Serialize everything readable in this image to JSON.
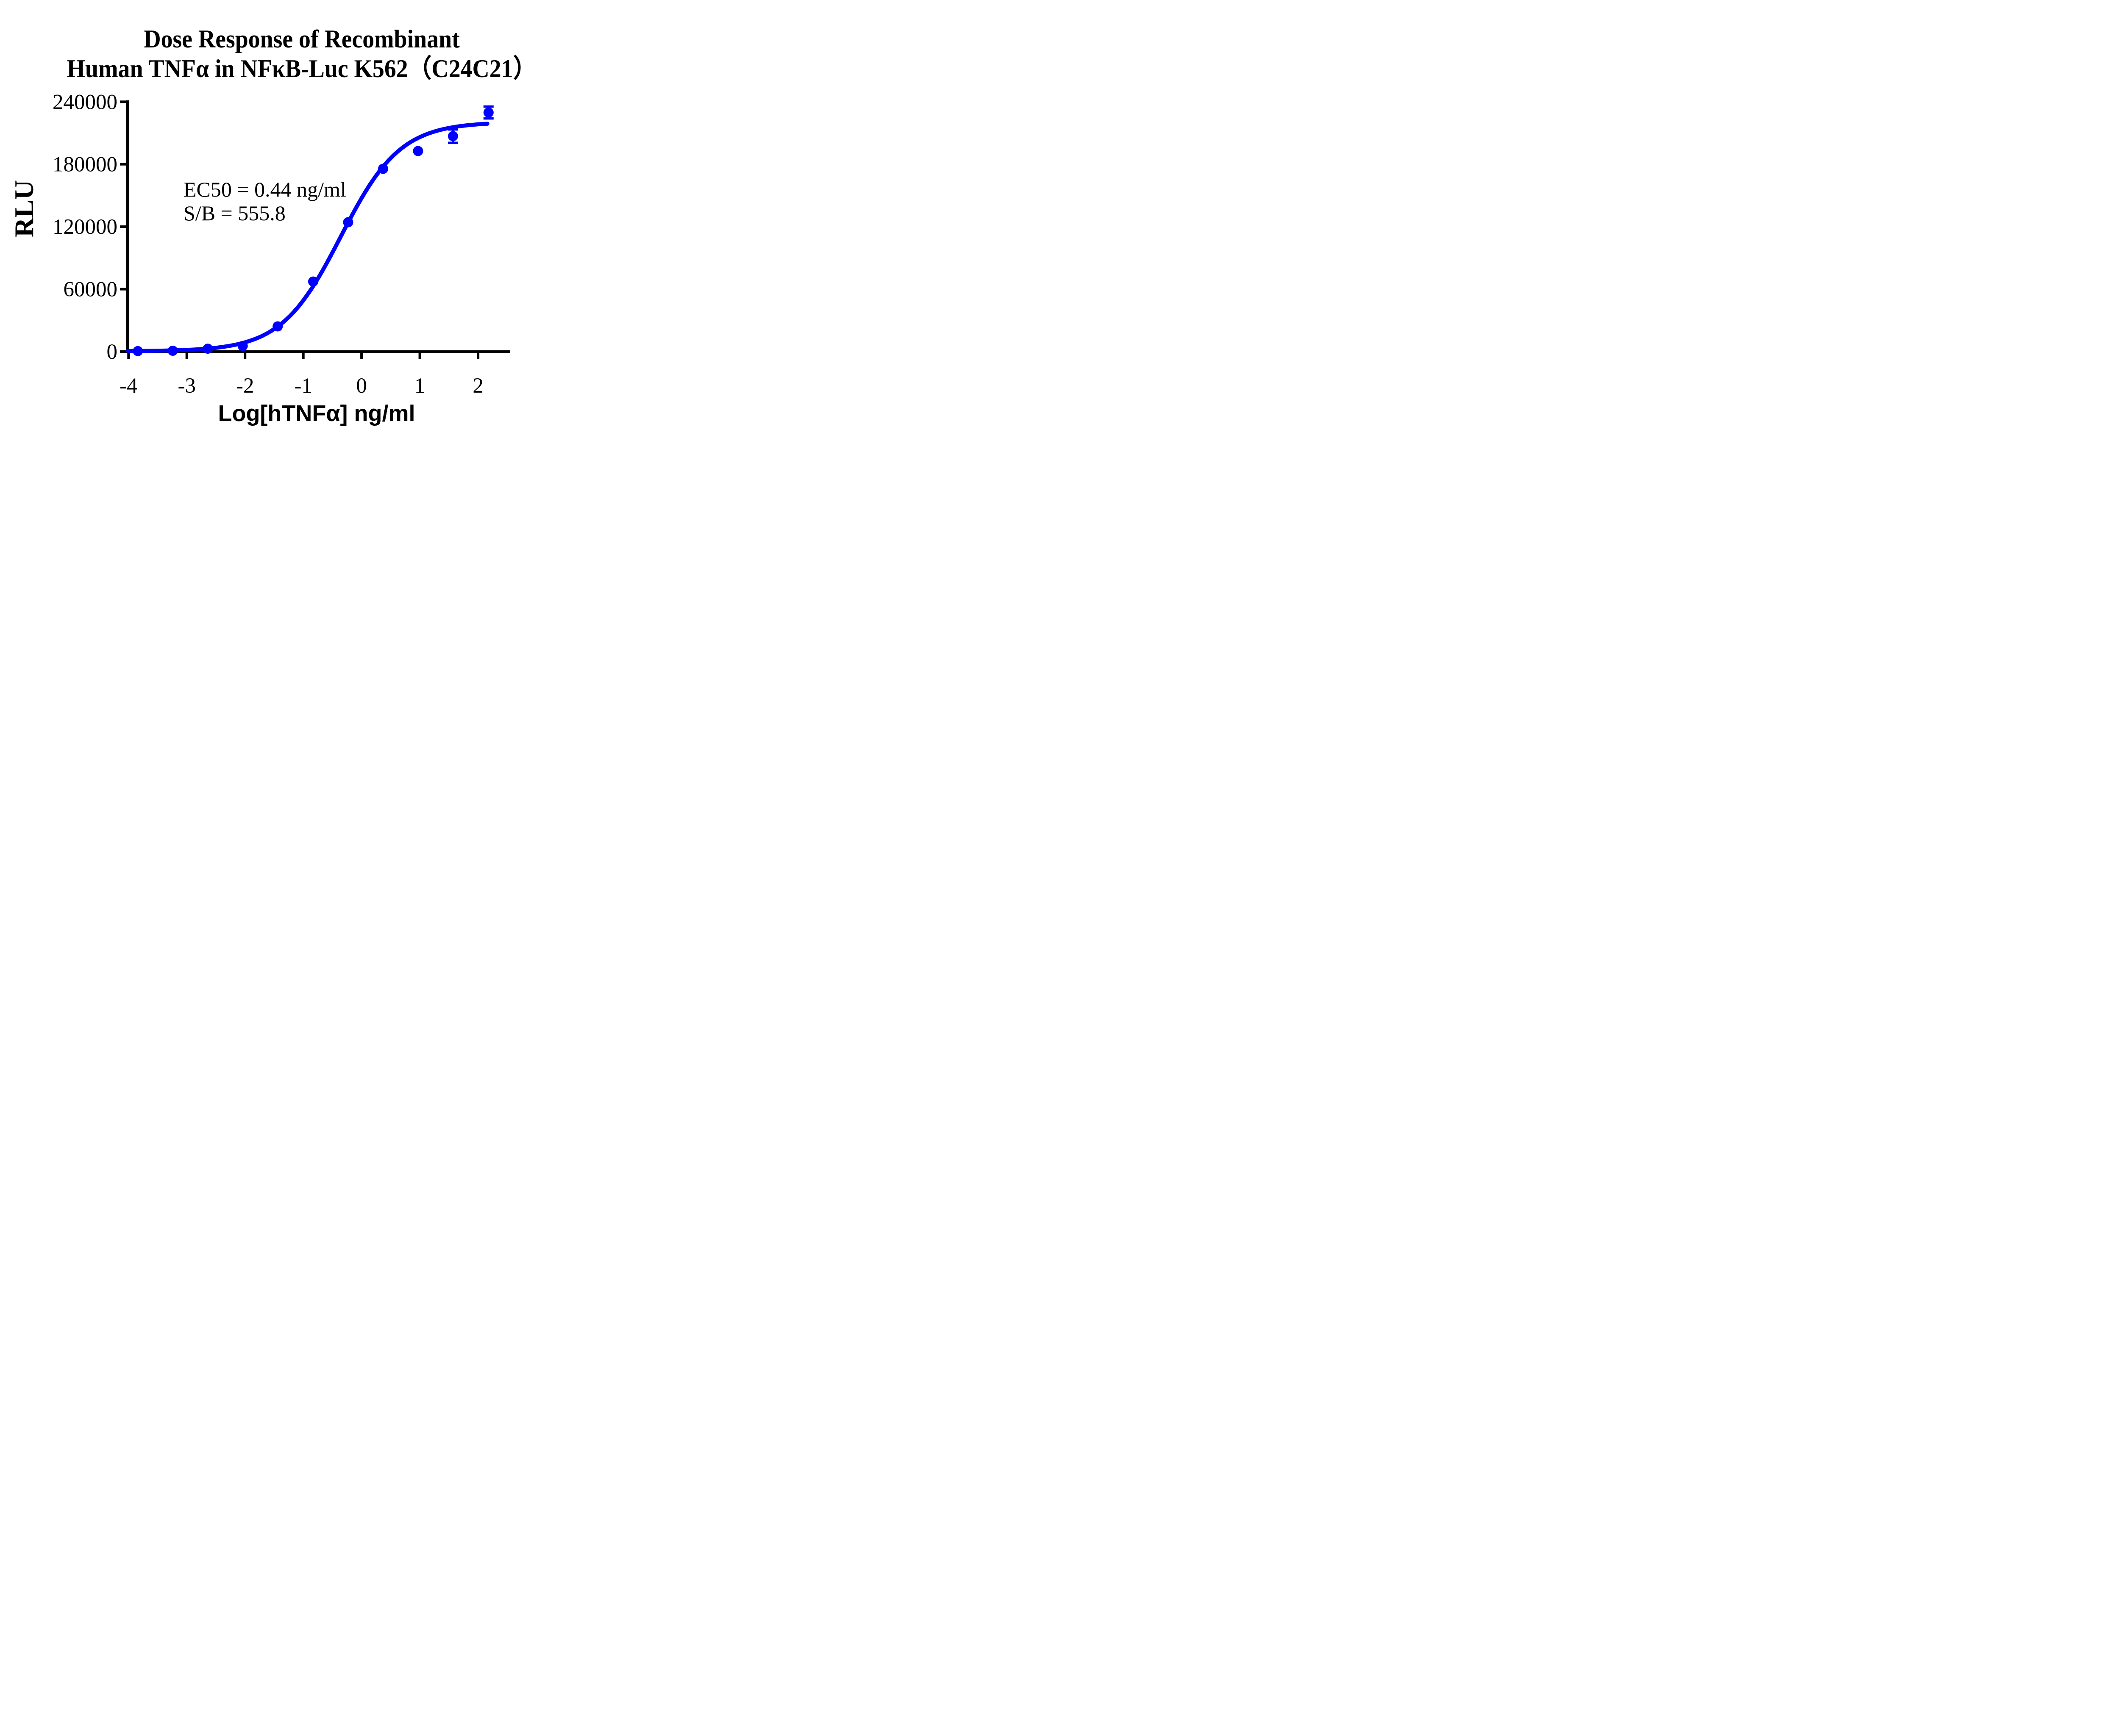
{
  "title": {
    "line1": "Dose Response of Recombinant",
    "line2": "Human TNFα in NFκB-Luc K562（C24C21）"
  },
  "annotation": {
    "ec50_line": "EC50 = 0.44 ng/ml",
    "sb_line": "S/B = 555.8"
  },
  "axes": {
    "y_label": "RLU",
    "x_label": "Log[hTNFα] ng/ml",
    "y_ticks": [
      "240000",
      "180000",
      "120000",
      "60000",
      "0"
    ],
    "x_ticks": [
      "-4",
      "-3",
      "-2",
      "-1",
      "0",
      "1",
      "2"
    ]
  },
  "chart_data": {
    "type": "scatter",
    "title": "Dose Response of Recombinant Human TNFα in NFκB-Luc K562（C24C21）",
    "xlabel": "Log[hTNFα] ng/ml",
    "ylabel": "RLU",
    "xlim": [
      -4.0,
      2.55
    ],
    "ylim": [
      0,
      240000
    ],
    "x_tick_values": [
      -4,
      -3,
      -2,
      -1,
      0,
      1,
      2
    ],
    "y_tick_values": [
      0,
      60000,
      120000,
      180000,
      240000
    ],
    "grid": false,
    "legend": "none",
    "accent_color": "#0000ff",
    "axis_color": "#000000",
    "series": [
      {
        "name": "hTNFα",
        "color": "#0000ff",
        "x": [
          -3.84,
          -3.24,
          -2.64,
          -2.04,
          -1.44,
          -0.83,
          -0.23,
          0.37,
          0.97,
          1.57,
          2.18
        ],
        "y": [
          500,
          800,
          2800,
          5400,
          24200,
          67300,
          124300,
          175600,
          192700,
          207000,
          229700
        ],
        "y_err": [
          0,
          0,
          0,
          0,
          0,
          0,
          0,
          0,
          0,
          6400,
          5700
        ]
      }
    ],
    "fit_curve": {
      "model": "4PL",
      "bottom": 400,
      "top": 220500,
      "log_ec50": -0.357,
      "hill": 0.85,
      "x_start": -4.01,
      "x_end": 2.16
    },
    "ec50_ng_ml": 0.44,
    "signal_to_background": 555.8
  }
}
